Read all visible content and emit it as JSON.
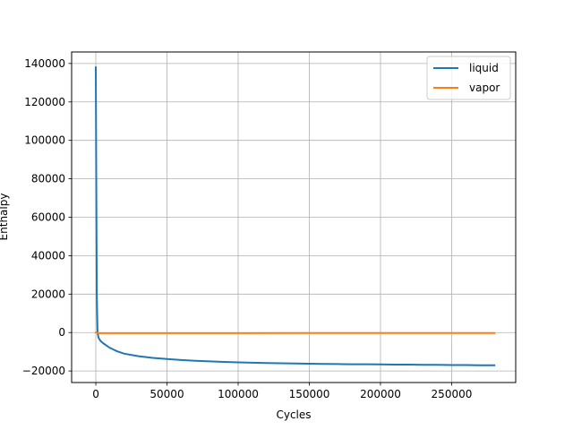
{
  "chart_data": {
    "type": "line",
    "xlabel": "Cycles",
    "ylabel": "Enthalpy",
    "xlim": [
      -17000,
      295000
    ],
    "ylim": [
      -26000,
      146000
    ],
    "xticks": [
      0,
      50000,
      100000,
      150000,
      200000,
      250000
    ],
    "yticks": [
      -20000,
      0,
      20000,
      40000,
      60000,
      80000,
      100000,
      120000,
      140000
    ],
    "xtick_labels": [
      "0",
      "50000",
      "100000",
      "150000",
      "200000",
      "250000"
    ],
    "ytick_labels": [
      "−20000",
      "0",
      "20000",
      "40000",
      "60000",
      "80000",
      "100000",
      "120000",
      "140000"
    ],
    "grid": true,
    "legend_position": "top-right",
    "series": [
      {
        "name": "liquid",
        "color": "#1f77b4",
        "x": [
          0,
          300,
          700,
          1200,
          1800,
          2500,
          3500,
          5000,
          7000,
          10000,
          15000,
          20000,
          30000,
          40000,
          50000,
          60000,
          70000,
          80000,
          90000,
          100000,
          110000,
          120000,
          130000,
          140000,
          150000,
          160000,
          170000,
          180000,
          190000,
          200000,
          210000,
          220000,
          230000,
          240000,
          250000,
          260000,
          270000,
          280000
        ],
        "y": [
          138000,
          80000,
          20000,
          500,
          -2500,
          -3500,
          -4500,
          -5500,
          -6500,
          -8000,
          -9800,
          -11000,
          -12300,
          -13200,
          -13800,
          -14300,
          -14700,
          -15000,
          -15300,
          -15500,
          -15700,
          -15900,
          -16000,
          -16100,
          -16200,
          -16300,
          -16400,
          -16500,
          -16500,
          -16600,
          -16700,
          -16700,
          -16800,
          -16800,
          -16900,
          -16900,
          -17000,
          -17000
        ]
      },
      {
        "name": "vapor",
        "color": "#ff7f0e",
        "x": [
          0,
          1000,
          3000,
          10000,
          30000,
          60000,
          100000,
          150000,
          200000,
          250000,
          280000
        ],
        "y": [
          0,
          -200,
          -300,
          -300,
          -300,
          -300,
          -300,
          -250,
          -250,
          -250,
          -250
        ]
      }
    ]
  }
}
